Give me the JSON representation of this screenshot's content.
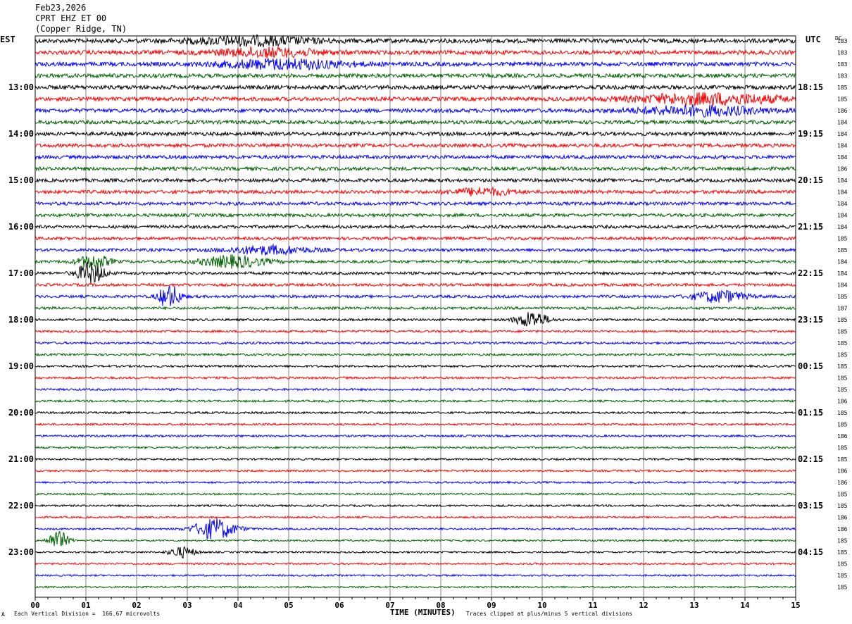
{
  "header": {
    "date": "Feb23,2026",
    "station": "CPRT EHZ ET 00",
    "location": "(Copper Ridge, TN)"
  },
  "corners": {
    "left": "EST",
    "right": "UTC",
    "dc": "DC"
  },
  "footer": {
    "scale": "Each Vertical Division =  166.67 microvolts",
    "xlabel": "TIME (MINUTES)",
    "clip": "Traces clipped at plus/minus 5 vertical divisions",
    "mark": "A"
  },
  "chart_data": {
    "type": "line",
    "title": "CPRT EHZ ET 00",
    "xlabel": "TIME (MINUTES)",
    "ylabel": "",
    "x_ticks": [
      "00",
      "01",
      "02",
      "03",
      "04",
      "05",
      "06",
      "07",
      "08",
      "09",
      "10",
      "11",
      "12",
      "13",
      "14",
      "15"
    ],
    "xlim": [
      0,
      15
    ],
    "grid": true,
    "trace_colors": [
      "#000000",
      "#ff0000",
      "#0000ff",
      "#006400"
    ],
    "left_labels": [
      "13:00",
      "14:00",
      "15:00",
      "16:00",
      "17:00",
      "18:00",
      "19:00",
      "20:00",
      "21:00",
      "22:00",
      "23:00"
    ],
    "right_labels": [
      "18:15",
      "19:15",
      "20:15",
      "21:15",
      "22:15",
      "23:15",
      "00:15",
      "01:15",
      "02:15",
      "03:15",
      "04:15"
    ],
    "dc_offsets": [
      "183",
      "183",
      "183",
      "183",
      "185",
      "185",
      "186",
      "184",
      "184",
      "184",
      "184",
      "186",
      "184",
      "184",
      "184",
      "184",
      "184",
      "185",
      "185",
      "184",
      "184",
      "184",
      "185",
      "187",
      "185",
      "185",
      "185",
      "185",
      "185",
      "185",
      "185",
      "186",
      "185",
      "185",
      "186",
      "185",
      "185",
      "186",
      "186",
      "185",
      "185",
      "186",
      "186",
      "185",
      "185",
      "185",
      "185",
      "185"
    ],
    "events": [
      {
        "row": 0,
        "minute": 4.3,
        "amp": 0.35,
        "width": 1.2
      },
      {
        "row": 1,
        "minute": 4.6,
        "amp": 0.35,
        "width": 1.0
      },
      {
        "row": 2,
        "minute": 4.9,
        "amp": 0.4,
        "width": 1.2
      },
      {
        "row": 5,
        "minute": 13.3,
        "amp": 0.45,
        "width": 1.5
      },
      {
        "row": 6,
        "minute": 13.1,
        "amp": 0.4,
        "width": 1.2
      },
      {
        "row": 13,
        "minute": 8.8,
        "amp": 0.3,
        "width": 0.6
      },
      {
        "row": 18,
        "minute": 4.6,
        "amp": 0.35,
        "width": 0.8
      },
      {
        "row": 19,
        "minute": 3.9,
        "amp": 0.5,
        "width": 0.6
      },
      {
        "row": 19,
        "minute": 1.15,
        "amp": 0.6,
        "width": 0.3
      },
      {
        "row": 20,
        "minute": 1.1,
        "amp": 1.0,
        "width": 0.25
      },
      {
        "row": 22,
        "minute": 2.65,
        "amp": 1.1,
        "width": 0.2
      },
      {
        "row": 22,
        "minute": 13.5,
        "amp": 0.5,
        "width": 0.5
      },
      {
        "row": 24,
        "minute": 9.8,
        "amp": 0.7,
        "width": 0.3
      },
      {
        "row": 42,
        "minute": 3.55,
        "amp": 0.9,
        "width": 0.4
      },
      {
        "row": 43,
        "minute": 0.45,
        "amp": 0.8,
        "width": 0.2
      },
      {
        "row": 44,
        "minute": 2.9,
        "amp": 0.45,
        "width": 0.25
      }
    ]
  }
}
